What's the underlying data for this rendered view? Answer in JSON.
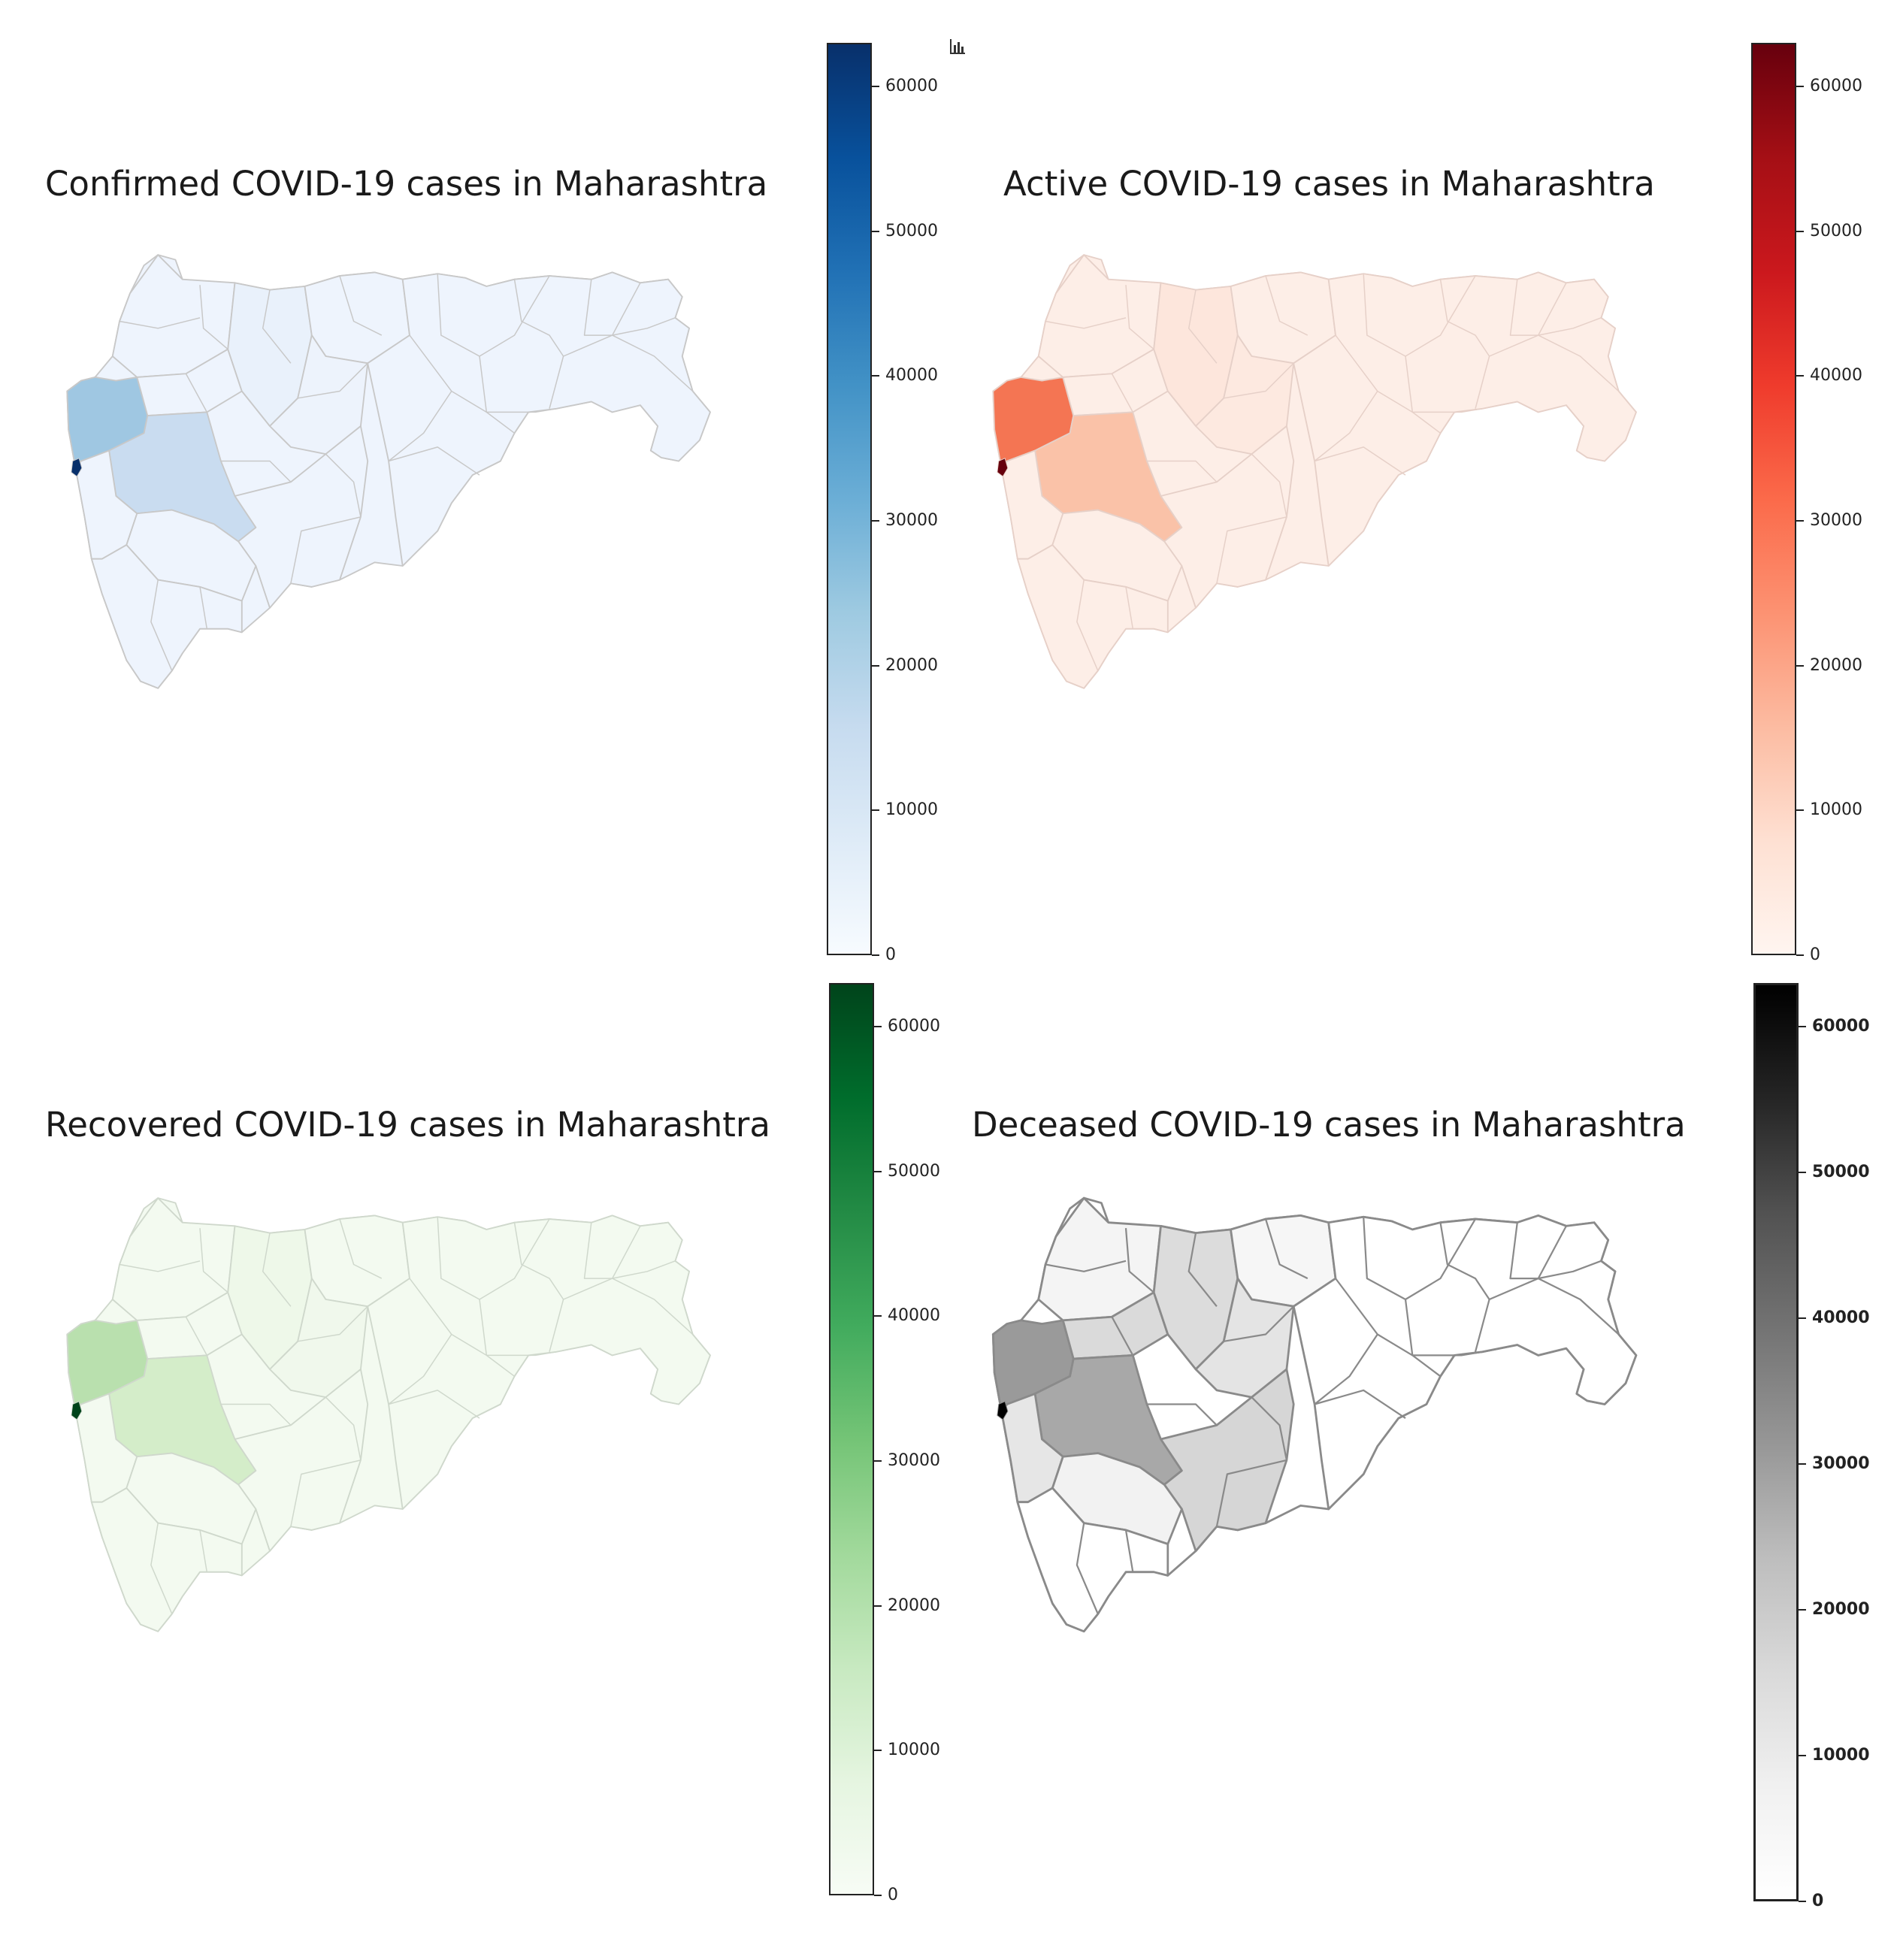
{
  "maps": [
    {
      "id": "confirmed",
      "title": "Confirmed COVID-19 cases in Maharashtra",
      "colormap": [
        "#f7fbff",
        "#deebf7",
        "#c6dbef",
        "#9ecae1",
        "#6baed6",
        "#4292c6",
        "#2171b5",
        "#08519c",
        "#08306b"
      ],
      "base_fill": "#eef4fd",
      "border_color": "#c8c8c8",
      "highlight_fills": {
        "north-konkan": "#9fc7e2",
        "pune": "#c9dcf0",
        "central": "#e9f1fb",
        "east-mid": "#edf3fc",
        "mumbai": "#08306b"
      },
      "ticks": [
        "0",
        "10000",
        "20000",
        "30000",
        "40000",
        "50000",
        "60000"
      ],
      "bold_labels": false
    },
    {
      "id": "active",
      "title": "Active COVID-19 cases in Maharashtra",
      "colormap": [
        "#fff5f0",
        "#fee0d2",
        "#fcbba1",
        "#fc9272",
        "#fb6a4a",
        "#ef3b2c",
        "#cb181d",
        "#a50f15",
        "#67000d"
      ],
      "base_fill": "#fdeee7",
      "border_color": "#e6d0c8",
      "highlight_fills": {
        "north-konkan": "#f47553",
        "pune": "#fac2a8",
        "central": "#fde6dc",
        "east-mid": "#fde9e0",
        "mumbai": "#67000d"
      },
      "ticks": [
        "0",
        "10000",
        "20000",
        "30000",
        "40000",
        "50000",
        "60000"
      ],
      "bold_labels": false
    },
    {
      "id": "recovered",
      "title": "Recovered COVID-19 cases in Maharashtra",
      "colormap": [
        "#f7fcf5",
        "#e5f5e0",
        "#c7e9c0",
        "#a1d99b",
        "#74c476",
        "#41ab5d",
        "#238b45",
        "#006d2c",
        "#00441b"
      ],
      "base_fill": "#f3faf0",
      "border_color": "#cfd8cc",
      "highlight_fills": {
        "north-konkan": "#b9e0ae",
        "pune": "#d4edc9",
        "central": "#eef8e9",
        "east-mid": "#f0f8ec",
        "mumbai": "#00441b"
      },
      "ticks": [
        "0",
        "10000",
        "20000",
        "30000",
        "40000",
        "50000",
        "60000"
      ],
      "bold_labels": false
    },
    {
      "id": "deceased",
      "title": "Deceased COVID-19 cases in Maharashtra",
      "colormap": [
        "#ffffff",
        "#f0f0f0",
        "#d9d9d9",
        "#bdbdbd",
        "#969696",
        "#737373",
        "#525252",
        "#252525",
        "#000000"
      ],
      "base_fill": "#ffffff",
      "border_color": "#8a8a8a",
      "highlight_fills": {
        "north-konkan": "#9a9a9a",
        "pune": "#a8a8a8",
        "central": "#dcdcdc",
        "east-mid": "#e4e4e4",
        "south": "#d6d6d6",
        "nashik-east": "#dadada",
        "raigad": "#e6e6e6",
        "satara": "#f2f2f2",
        "nw": "#f4f4f4",
        "north-east": "#f6f6f6",
        "mumbai": "#000000"
      },
      "ticks": [
        "0",
        "10000",
        "20000",
        "30000",
        "40000",
        "50000",
        "60000"
      ],
      "bold_labels": true
    }
  ],
  "icons": {
    "corner": "bar-chart-icon"
  }
}
